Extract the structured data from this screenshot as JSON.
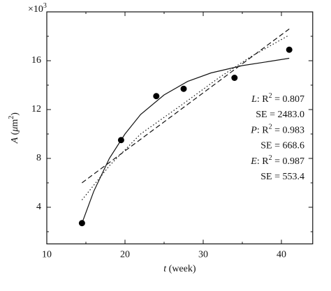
{
  "chart_data": {
    "type": "scatter",
    "multiplier": [
      {
        "t": "×10"
      },
      {
        "t": "3",
        "sup": true
      }
    ],
    "x_label": [
      {
        "t": "t",
        "i": true
      },
      {
        "t": " (week)"
      }
    ],
    "y_label": [
      {
        "t": "A",
        "i": true
      },
      {
        "t": " ("
      },
      {
        "t": "μ",
        "i": true
      },
      {
        "t": "m"
      },
      {
        "t": "2",
        "sup": true
      },
      {
        "t": ")"
      }
    ],
    "xlim": [
      10,
      44
    ],
    "xticks": [
      10,
      20,
      30,
      40
    ],
    "xminorticks": [
      15,
      25,
      35
    ],
    "ylim": [
      1,
      20
    ],
    "yticks": [
      4,
      8,
      12,
      16
    ],
    "yminorticks": [
      2,
      6,
      10,
      14,
      18
    ],
    "x": [
      14.5,
      19.5,
      24,
      27.5,
      34,
      41
    ],
    "values": [
      2.7,
      9.5,
      13.1,
      13.7,
      14.6,
      16.9
    ],
    "color": "#000000",
    "fits": [
      {
        "dash": "7 4",
        "x": [
          14.5,
          41
        ],
        "values": [
          6.0,
          18.6
        ]
      },
      {
        "dash": "1.5 3",
        "x": [
          14.5,
          18,
          22,
          27.5,
          32,
          36,
          41
        ],
        "values": [
          4.6,
          7.4,
          10.0,
          12.5,
          14.6,
          16.3,
          18.1
        ]
      },
      {
        "dash": "none",
        "x": [
          14.5,
          16,
          18,
          20,
          22,
          25,
          28,
          31,
          35,
          38,
          41
        ],
        "values": [
          2.7,
          5.3,
          8.0,
          10.0,
          11.6,
          13.2,
          14.3,
          15.0,
          15.6,
          15.9,
          16.2
        ]
      }
    ],
    "fit_stats": [
      {
        "model": "L",
        "r": ": R",
        "sup": "2",
        "r2": " = 0.807",
        "se": "SE = 2483.0"
      },
      {
        "model": "P",
        "r": ": R",
        "sup": "2",
        "r2": " = 0.983",
        "se": "SE = 668.6"
      },
      {
        "model": "E",
        "r": ": R",
        "sup": "2",
        "r2": " = 0.987",
        "se": "SE = 553.4"
      }
    ]
  }
}
